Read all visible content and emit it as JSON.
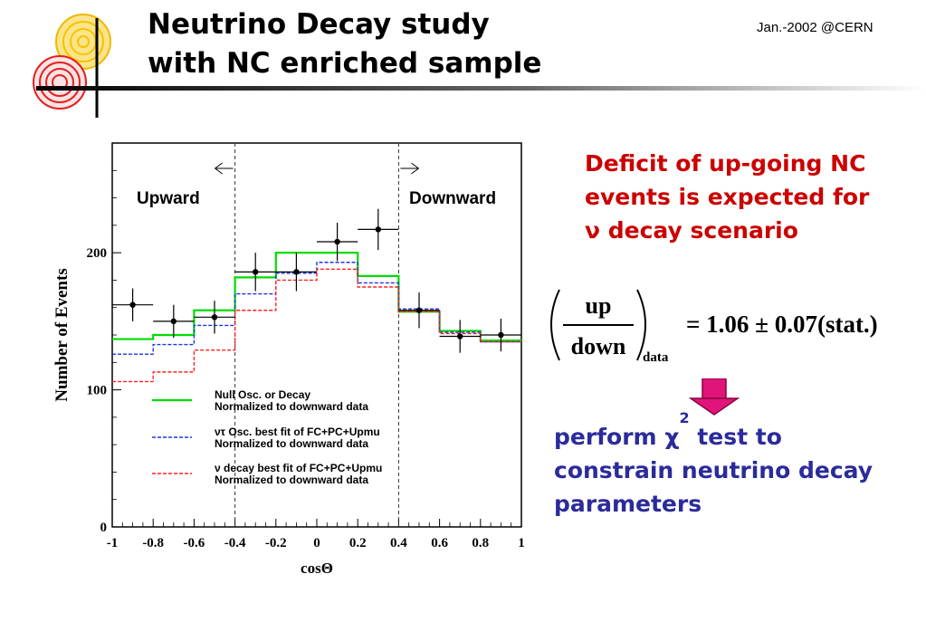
{
  "slide": {
    "title_line1": "Neutrino Decay study",
    "title_line2": "with NC enriched sample",
    "date": "Jan.-2002 @CERN"
  },
  "notes": {
    "red_line1": "Deficit of up-going NC",
    "red_line2": "events is expected for",
    "red_line3": "ν decay scenario",
    "blue_line1_a": "perform χ",
    "blue_line1_sup": "2",
    "blue_line1_b": " test to",
    "blue_line2": "constrain neutrino decay",
    "blue_line3": "parameters"
  },
  "equation": {
    "numerator": "up",
    "denominator": "down",
    "subscript": "data",
    "result": "= 1.06 ± 0.07(stat.)"
  },
  "colors": {
    "red_text": "#cc0000",
    "blue_text": "#2b2b9b",
    "null_osc": "#00dd00",
    "osc_fit": "#2233dd",
    "decay_fit": "#ff2222",
    "arrow": "#e0157a"
  },
  "chart_data": {
    "type": "line",
    "xlabel": "cosΘ",
    "ylabel": "Number of Events",
    "xlim": [
      -1,
      1
    ],
    "ylim": [
      0,
      280
    ],
    "xticks": [
      "-1",
      "-0.8",
      "-0.6",
      "-0.4",
      "-0.2",
      "0",
      "0.2",
      "0.4",
      "0.6",
      "0.8",
      "1"
    ],
    "yticks": [
      "0",
      "100",
      "200"
    ],
    "region_labels": {
      "left": "Upward",
      "right": "Downward"
    },
    "dividers": [
      -0.4,
      0.4
    ],
    "bin_edges": [
      -1,
      -0.8,
      -0.6,
      -0.4,
      -0.2,
      0,
      0.2,
      0.4,
      0.6,
      0.8,
      1
    ],
    "series": [
      {
        "name": "Null Osc. or Decay",
        "sub": "Normalized to downward data",
        "style": "solid",
        "color": "#00dd00",
        "values": [
          137,
          140,
          158,
          182,
          200,
          200,
          183,
          157,
          143,
          136
        ]
      },
      {
        "name": "ντ Osc. best fit of FC+PC+Upmu",
        "sub": "Normalized to downward data",
        "style": "dashed",
        "color": "#2233dd",
        "values": [
          126,
          133,
          147,
          170,
          185,
          193,
          178,
          159,
          142,
          135
        ]
      },
      {
        "name": "ν decay best fit of FC+PC+Upmu",
        "sub": "Normalized to downward data",
        "style": "dashed",
        "color": "#ff2222",
        "values": [
          106,
          113,
          129,
          158,
          180,
          188,
          175,
          157,
          141,
          135
        ]
      }
    ],
    "data_points": {
      "x": [
        -0.9,
        -0.7,
        -0.5,
        -0.3,
        -0.1,
        0.1,
        0.3,
        0.5,
        0.7,
        0.9
      ],
      "y": [
        162,
        150,
        153,
        186,
        186,
        208,
        217,
        158,
        139,
        140
      ],
      "yerr": [
        12,
        12,
        12,
        14,
        14,
        14,
        15,
        13,
        12,
        12
      ]
    }
  }
}
